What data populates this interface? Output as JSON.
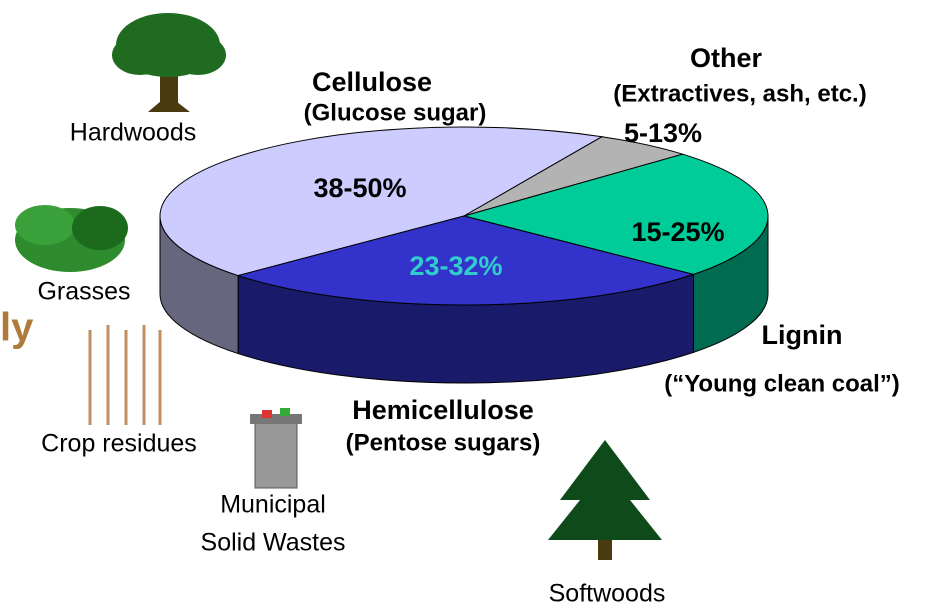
{
  "cut_text": "ly",
  "slices": [
    {
      "name": "Cellulose",
      "subtitle": "(Glucose sugar)",
      "share": "38-50%"
    },
    {
      "name": "Hemicellulose",
      "subtitle": "(Pentose sugars)",
      "share": "23-32%"
    },
    {
      "name": "Lignin",
      "subtitle": "(“Young clean coal”)",
      "share": "15-25%"
    },
    {
      "name": "Other",
      "subtitle": "(Extractives, ash, etc.)",
      "share": "5-13%"
    }
  ],
  "sources": [
    "Hardwoods",
    "Grasses",
    "Crop residues",
    "Municipal",
    "Solid Wastes",
    "Softwoods"
  ]
}
